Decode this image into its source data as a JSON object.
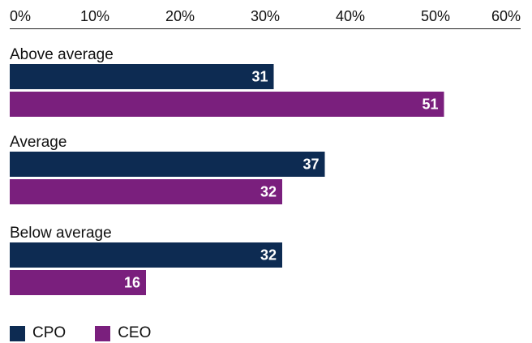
{
  "chart_data": {
    "type": "bar",
    "orientation": "horizontal",
    "xlim": [
      0,
      60
    ],
    "x_ticks": [
      "0%",
      "10%",
      "20%",
      "30%",
      "40%",
      "50%",
      "60%"
    ],
    "x_axis_position": "top",
    "grid": false,
    "legend_position": "bottom-left",
    "categories": [
      "Above average",
      "Average",
      "Below average"
    ],
    "series": [
      {
        "name": "CPO",
        "color": "#0d2b52",
        "values": [
          31,
          37,
          32
        ]
      },
      {
        "name": "CEO",
        "color": "#7a1f7d",
        "values": [
          51,
          32,
          16
        ]
      }
    ]
  }
}
